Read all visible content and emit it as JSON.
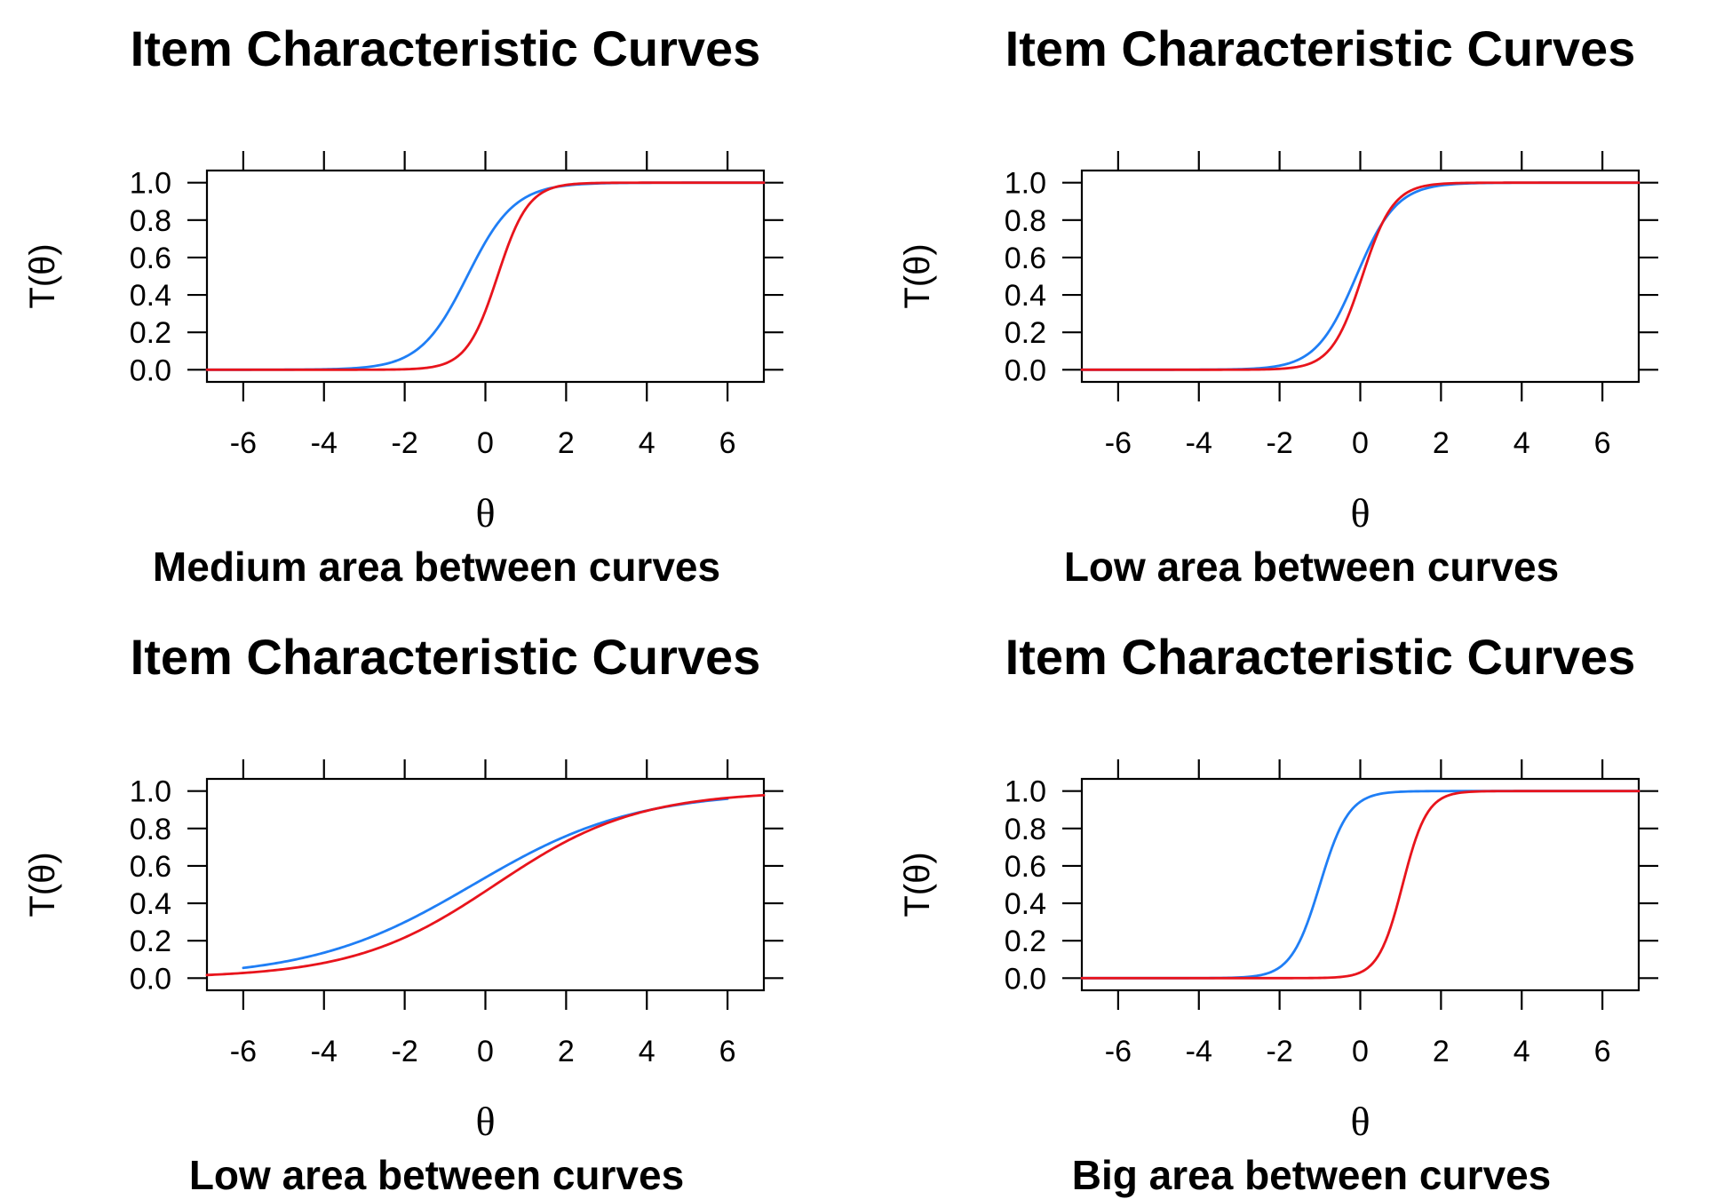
{
  "chart_data": [
    {
      "type": "line",
      "title": "Item Characteristic Curves",
      "caption": "Medium area between curves",
      "xlabel": "θ",
      "ylabel": "T(θ)",
      "xlim": [
        -6.9,
        6.9
      ],
      "ylim": [
        -0.065,
        1.065
      ],
      "xticks": [
        -6,
        -4,
        -2,
        0,
        2,
        4,
        6
      ],
      "xtick_labels": [
        "-6",
        "-4",
        "-2",
        "0",
        "2",
        "4",
        "6"
      ],
      "yticks": [
        0,
        0.2,
        0.4,
        0.6,
        0.8,
        1
      ],
      "ytick_labels": [
        "0.0",
        "0.2",
        "0.4",
        "0.6",
        "0.8",
        "1.0"
      ],
      "grid": false,
      "series": [
        {
          "color": "#1f7ef5",
          "a": 1.7,
          "b": -0.45,
          "xrange": [
            -6.9,
            6.9
          ]
        },
        {
          "color": "#e8141c",
          "a": 2.6,
          "b": 0.3,
          "xrange": [
            -6.9,
            6.9
          ]
        }
      ]
    },
    {
      "type": "line",
      "title": "Item Characteristic Curves",
      "caption": "Low area between curves",
      "xlabel": "θ",
      "ylabel": "T(θ)",
      "xlim": [
        -6.9,
        6.9
      ],
      "ylim": [
        -0.065,
        1.065
      ],
      "xticks": [
        -6,
        -4,
        -2,
        0,
        2,
        4,
        6
      ],
      "xtick_labels": [
        "-6",
        "-4",
        "-2",
        "0",
        "2",
        "4",
        "6"
      ],
      "yticks": [
        0,
        0.2,
        0.4,
        0.6,
        0.8,
        1
      ],
      "ytick_labels": [
        "0.0",
        "0.2",
        "0.4",
        "0.6",
        "0.8",
        "1.0"
      ],
      "grid": false,
      "series": [
        {
          "color": "#1f7ef5",
          "a": 2.0,
          "b": -0.1,
          "xrange": [
            -6.9,
            6.9
          ]
        },
        {
          "color": "#e8141c",
          "a": 2.6,
          "b": 0.05,
          "xrange": [
            -6.9,
            6.9
          ]
        }
      ]
    },
    {
      "type": "line",
      "title": "Item Characteristic Curves",
      "caption": "Low area between curves",
      "xlabel": "θ",
      "ylabel": "T(θ)",
      "xlim": [
        -6.9,
        6.9
      ],
      "ylim": [
        -0.065,
        1.065
      ],
      "xticks": [
        -6,
        -4,
        -2,
        0,
        2,
        4,
        6
      ],
      "xtick_labels": [
        "-6",
        "-4",
        "-2",
        "0",
        "2",
        "4",
        "6"
      ],
      "yticks": [
        0,
        0.2,
        0.4,
        0.6,
        0.8,
        1
      ],
      "ytick_labels": [
        "0.0",
        "0.2",
        "0.4",
        "0.6",
        "0.8",
        "1.0"
      ],
      "grid": false,
      "series": [
        {
          "color": "#1f7ef5",
          "a": 0.5,
          "b": -0.3,
          "xrange": [
            -6,
            6
          ]
        },
        {
          "color": "#e8141c",
          "a": 0.57,
          "b": 0.25,
          "xrange": [
            -6.9,
            6.9
          ]
        }
      ]
    },
    {
      "type": "line",
      "title": "Item Characteristic Curves",
      "caption": "Big area between curves",
      "xlabel": "θ",
      "ylabel": "T(θ)",
      "xlim": [
        -6.9,
        6.9
      ],
      "ylim": [
        -0.065,
        1.065
      ],
      "xticks": [
        -6,
        -4,
        -2,
        0,
        2,
        4,
        6
      ],
      "xtick_labels": [
        "-6",
        "-4",
        "-2",
        "0",
        "2",
        "4",
        "6"
      ],
      "yticks": [
        0,
        0.2,
        0.4,
        0.6,
        0.8,
        1
      ],
      "ytick_labels": [
        "0.0",
        "0.2",
        "0.4",
        "0.6",
        "0.8",
        "1.0"
      ],
      "grid": false,
      "series": [
        {
          "color": "#1f7ef5",
          "a": 2.8,
          "b": -1.0,
          "xrange": [
            -6.9,
            6.9
          ]
        },
        {
          "color": "#e8141c",
          "a": 3.3,
          "b": 1.05,
          "xrange": [
            -6.9,
            6.9
          ]
        }
      ]
    }
  ]
}
